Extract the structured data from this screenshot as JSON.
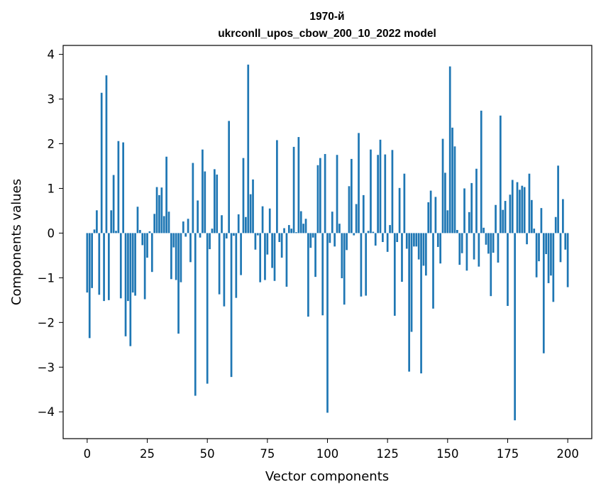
{
  "chart_data": {
    "type": "bar",
    "title_line1": "1970-й",
    "title_line2": "ukrconll_upos_cbow_200_10_2022 model",
    "xlabel": "Vector components",
    "ylabel": "Components values",
    "xlim": [
      -10,
      210
    ],
    "ylim": [
      -4.6,
      4.2
    ],
    "xticks": [
      0,
      25,
      50,
      75,
      100,
      125,
      150,
      175,
      200
    ],
    "yticks": [
      -4,
      -3,
      -2,
      -1,
      0,
      1,
      2,
      3,
      4
    ],
    "xtick_labels": [
      "0",
      "25",
      "50",
      "75",
      "100",
      "125",
      "150",
      "175",
      "200"
    ],
    "ytick_labels": [
      "−4",
      "−3",
      "−2",
      "−1",
      "0",
      "1",
      "2",
      "3",
      "4"
    ],
    "bar_color": "#1f77b4",
    "values": [
      -1.33,
      -2.35,
      -1.23,
      0.08,
      0.51,
      -1.38,
      3.14,
      -1.52,
      3.53,
      -1.5,
      0.51,
      1.3,
      0.05,
      2.06,
      -1.46,
      2.03,
      -2.31,
      -1.52,
      -2.53,
      -1.33,
      -1.4,
      0.59,
      0.07,
      -0.27,
      -1.48,
      -0.55,
      0.04,
      -0.87,
      0.43,
      1.03,
      0.85,
      1.02,
      0.38,
      1.71,
      0.48,
      -1.03,
      -0.32,
      -1.05,
      -2.25,
      -1.1,
      0.26,
      -0.08,
      0.32,
      -0.65,
      1.57,
      -3.64,
      0.73,
      -0.1,
      1.87,
      1.38,
      -3.37,
      -0.36,
      0.1,
      1.43,
      1.31,
      -1.37,
      0.4,
      -1.64,
      -0.12,
      2.51,
      -3.22,
      -0.06,
      -1.45,
      0.42,
      -0.94,
      1.68,
      0.36,
      3.77,
      0.87,
      1.2,
      -0.37,
      -0.05,
      -1.1,
      0.6,
      -1.05,
      -0.48,
      0.55,
      -0.78,
      -1.07,
      2.08,
      -0.2,
      -0.55,
      0.11,
      -1.2,
      0.18,
      0.1,
      1.93,
      0.02,
      2.15,
      0.49,
      0.21,
      0.32,
      -1.87,
      -0.33,
      -0.1,
      -0.98,
      1.52,
      1.68,
      -1.84,
      1.77,
      -4.02,
      -0.22,
      0.48,
      -0.3,
      1.75,
      0.21,
      -1.01,
      -1.6,
      -0.38,
      1.05,
      1.66,
      -0.05,
      0.65,
      2.24,
      -1.42,
      0.85,
      -1.4,
      0.05,
      1.87,
      0.03,
      -0.28,
      1.75,
      2.09,
      -0.2,
      1.76,
      -0.42,
      0.18,
      1.86,
      -1.85,
      -0.2,
      1.01,
      -1.09,
      1.33,
      -0.35,
      -3.1,
      -2.21,
      -0.3,
      -0.3,
      -0.59,
      -3.14,
      -0.73,
      -0.95,
      0.69,
      0.95,
      -1.69,
      0.81,
      -0.31,
      -0.68,
      2.11,
      1.35,
      0.51,
      3.73,
      2.36,
      1.94,
      0.07,
      -0.71,
      -0.45,
      1.0,
      -0.84,
      0.47,
      1.12,
      -0.59,
      1.44,
      -0.75,
      2.74,
      0.12,
      -0.26,
      -0.46,
      -1.41,
      -0.44,
      0.63,
      -0.66,
      2.63,
      0.52,
      0.72,
      -1.63,
      0.86,
      1.19,
      -4.19,
      1.14,
      0.97,
      1.06,
      1.03,
      -0.25,
      1.33,
      0.74,
      0.1,
      -0.99,
      -0.63,
      0.56,
      -2.69,
      -0.47,
      -1.12,
      -0.95,
      -1.54,
      0.36,
      1.51,
      -0.65,
      0.76,
      -0.37,
      -1.21
    ]
  }
}
